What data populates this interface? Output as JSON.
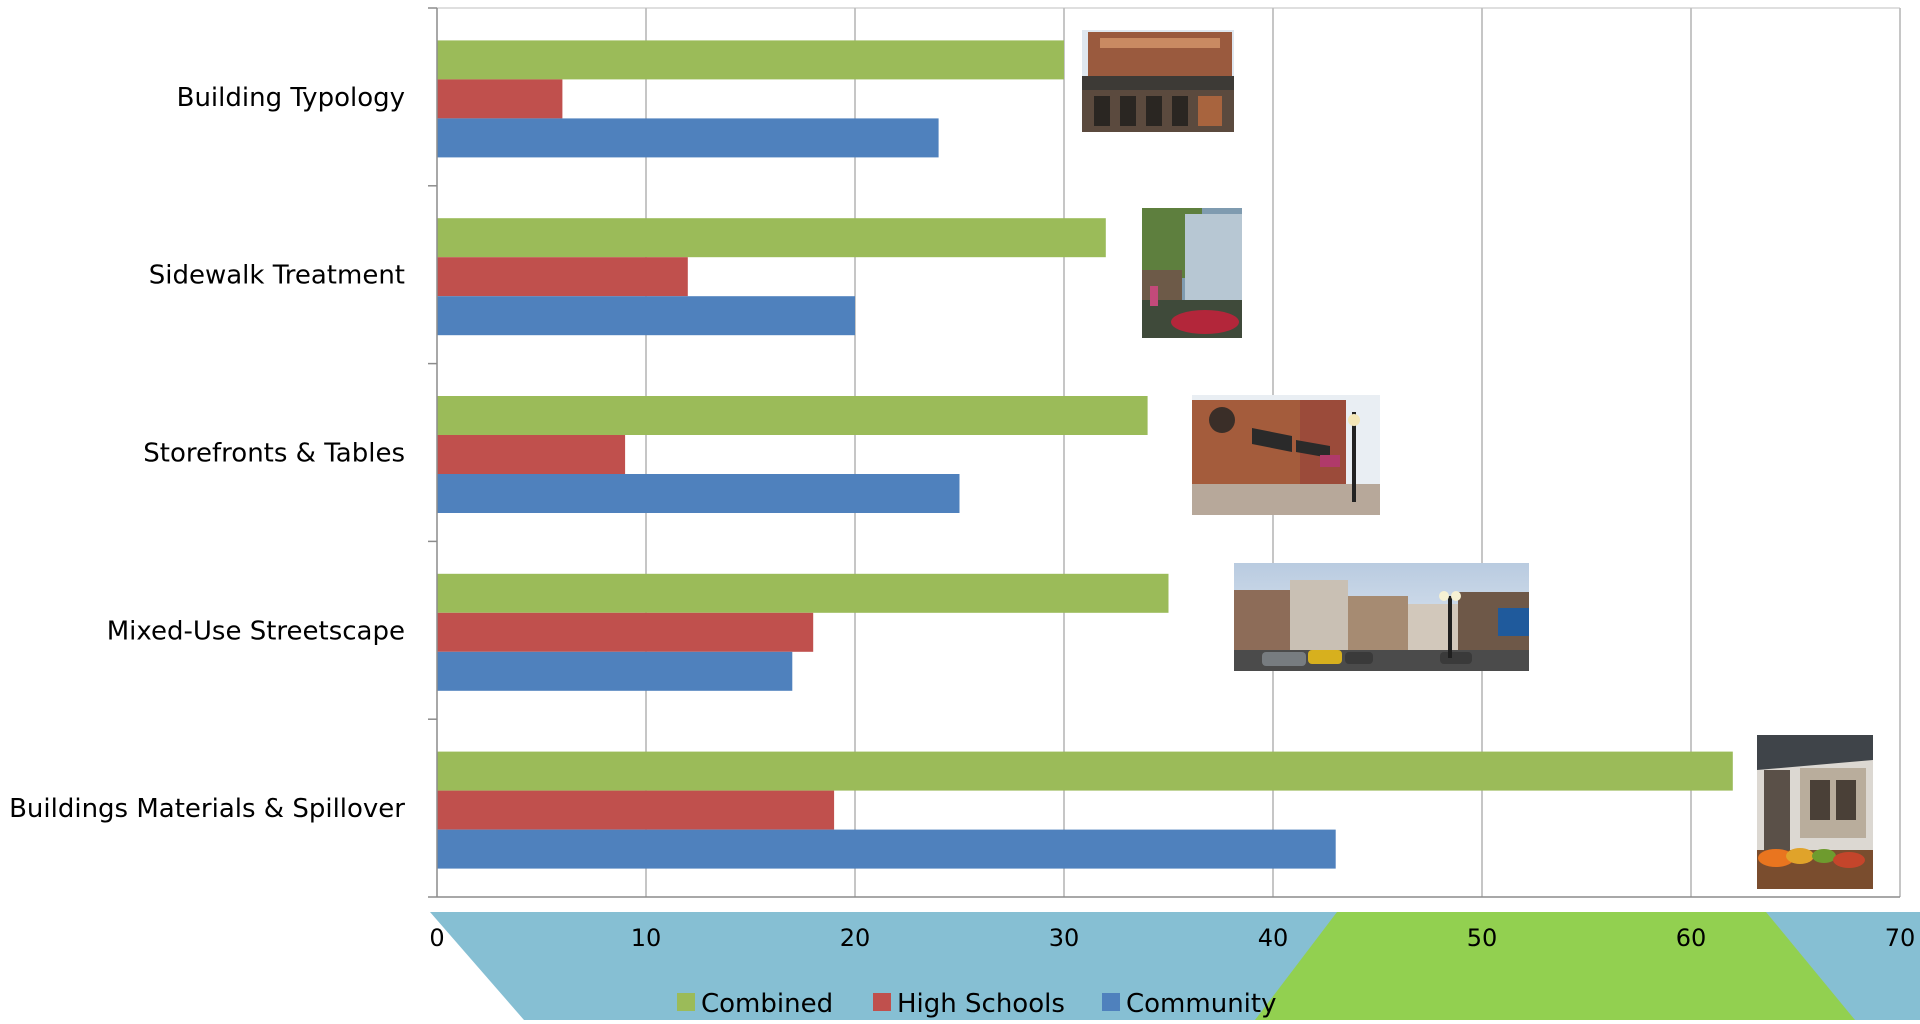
{
  "chart_data": {
    "type": "bar",
    "orientation": "horizontal",
    "categories": [
      "Building Typology",
      "Sidewalk Treatment",
      "Storefronts & Tables",
      "Mixed-Use Streetscape",
      "Buildings Materials & Spillover"
    ],
    "series": [
      {
        "name": "Combined",
        "color": "#9BBB59",
        "values": [
          30,
          32,
          34,
          35,
          62
        ]
      },
      {
        "name": "High Schools",
        "color": "#C0504D",
        "values": [
          6,
          12,
          9,
          18,
          19
        ]
      },
      {
        "name": "Community",
        "color": "#4F81BD",
        "values": [
          24,
          20,
          25,
          17,
          43
        ]
      }
    ],
    "xlim": [
      0,
      70
    ],
    "xticks": [
      "0",
      "10",
      "20",
      "30",
      "40",
      "50",
      "60",
      "70"
    ],
    "grid": true,
    "legend_position": "bottom",
    "title": "",
    "xlabel": "",
    "ylabel": "",
    "decorations": {
      "band_color": "#86BFD3",
      "accent_color": "#92D050",
      "photos": [
        "storefront-building-photo",
        "sidewalk-street-photo",
        "storefronts-awnings-photo",
        "mixed-use-street-photo",
        "market-produce-photo"
      ]
    }
  }
}
